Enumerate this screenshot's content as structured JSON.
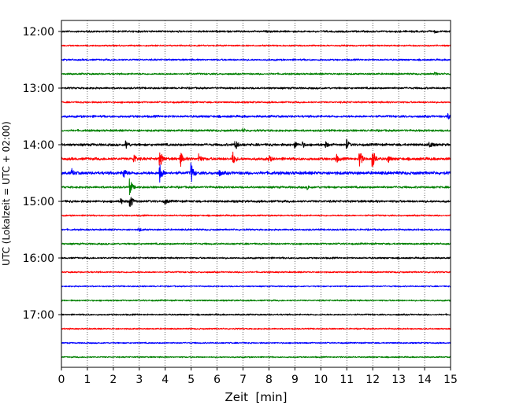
{
  "chart_data": {
    "type": "line",
    "subtype": "helicorder",
    "xlabel": "Zeit  [min]",
    "ylabel": "UTC (Lokalzeit = UTC + 02:00)",
    "xlim": [
      0,
      15
    ],
    "x_ticks": [
      0,
      1,
      2,
      3,
      4,
      5,
      6,
      7,
      8,
      9,
      10,
      11,
      12,
      13,
      14,
      15
    ],
    "y_ticks": [
      {
        "label": "12:00",
        "row": 0
      },
      {
        "label": "13:00",
        "row": 4
      },
      {
        "label": "14:00",
        "row": 8
      },
      {
        "label": "15:00",
        "row": 12
      },
      {
        "label": "16:00",
        "row": 16
      },
      {
        "label": "17:00",
        "row": 20
      }
    ],
    "grid": "vertical dotted at each minute",
    "row_interval_minutes": 15,
    "start_time": "12:00",
    "rows": [
      {
        "time": "12:00",
        "color": "#000000",
        "amplitude": 1.0,
        "events": [
          {
            "x": 14.4,
            "amp": 1.3
          }
        ]
      },
      {
        "time": "12:15",
        "color": "#ff0000",
        "amplitude": 0.8,
        "events": []
      },
      {
        "time": "12:30",
        "color": "#0000ff",
        "amplitude": 0.9,
        "events": []
      },
      {
        "time": "12:45",
        "color": "#008000",
        "amplitude": 0.9,
        "events": [
          {
            "x": 14.4,
            "amp": 1.5
          }
        ]
      },
      {
        "time": "13:00",
        "color": "#000000",
        "amplitude": 1.0,
        "events": []
      },
      {
        "time": "13:15",
        "color": "#ff0000",
        "amplitude": 0.9,
        "events": []
      },
      {
        "time": "13:30",
        "color": "#0000ff",
        "amplitude": 1.2,
        "events": [
          {
            "x": 14.9,
            "amp": 3
          }
        ]
      },
      {
        "time": "13:45",
        "color": "#008000",
        "amplitude": 1.1,
        "events": [
          {
            "x": 7.0,
            "amp": 2
          }
        ]
      },
      {
        "time": "14:00",
        "color": "#000000",
        "amplitude": 1.3,
        "events": [
          {
            "x": 2.5,
            "amp": 5
          },
          {
            "x": 6.7,
            "amp": 8
          },
          {
            "x": 9.0,
            "amp": 4
          },
          {
            "x": 9.3,
            "amp": 3
          },
          {
            "x": 10.2,
            "amp": 3
          },
          {
            "x": 11.0,
            "amp": 6
          },
          {
            "x": 14.2,
            "amp": 4
          }
        ]
      },
      {
        "time": "14:15",
        "color": "#ff0000",
        "amplitude": 1.4,
        "events": [
          {
            "x": 2.8,
            "amp": 6
          },
          {
            "x": 3.8,
            "amp": 12
          },
          {
            "x": 4.6,
            "amp": 8
          },
          {
            "x": 5.3,
            "amp": 6
          },
          {
            "x": 6.6,
            "amp": 9
          },
          {
            "x": 8.0,
            "amp": 4
          },
          {
            "x": 10.6,
            "amp": 5
          },
          {
            "x": 11.5,
            "amp": 12
          },
          {
            "x": 12.0,
            "amp": 14
          },
          {
            "x": 12.6,
            "amp": 4
          }
        ]
      },
      {
        "time": "14:30",
        "color": "#0000ff",
        "amplitude": 1.6,
        "events": [
          {
            "x": 0.4,
            "amp": 4
          },
          {
            "x": 2.4,
            "amp": 7
          },
          {
            "x": 3.8,
            "amp": 12
          },
          {
            "x": 5.0,
            "amp": 13
          },
          {
            "x": 6.1,
            "amp": 3
          }
        ]
      },
      {
        "time": "14:45",
        "color": "#008000",
        "amplitude": 1.1,
        "events": [
          {
            "x": 2.65,
            "amp": 10
          },
          {
            "x": 9.5,
            "amp": 2
          }
        ]
      },
      {
        "time": "15:00",
        "color": "#000000",
        "amplitude": 1.2,
        "events": [
          {
            "x": 2.65,
            "amp": 10
          },
          {
            "x": 2.3,
            "amp": 3
          },
          {
            "x": 4.0,
            "amp": 3
          }
        ]
      },
      {
        "time": "15:15",
        "color": "#ff0000",
        "amplitude": 0.8,
        "events": []
      },
      {
        "time": "15:30",
        "color": "#0000ff",
        "amplitude": 0.9,
        "events": [
          {
            "x": 3.0,
            "amp": 2
          }
        ]
      },
      {
        "time": "15:45",
        "color": "#008000",
        "amplitude": 0.9,
        "events": []
      },
      {
        "time": "16:00",
        "color": "#000000",
        "amplitude": 0.9,
        "events": []
      },
      {
        "time": "16:15",
        "color": "#ff0000",
        "amplitude": 0.8,
        "events": []
      },
      {
        "time": "16:30",
        "color": "#0000ff",
        "amplitude": 0.7,
        "events": []
      },
      {
        "time": "16:45",
        "color": "#008000",
        "amplitude": 0.8,
        "events": []
      },
      {
        "time": "17:00",
        "color": "#000000",
        "amplitude": 0.8,
        "events": []
      },
      {
        "time": "17:15",
        "color": "#ff0000",
        "amplitude": 0.7,
        "events": []
      },
      {
        "time": "17:30",
        "color": "#0000ff",
        "amplitude": 0.7,
        "events": []
      },
      {
        "time": "17:45",
        "color": "#008000",
        "amplitude": 0.7,
        "events": []
      }
    ]
  }
}
